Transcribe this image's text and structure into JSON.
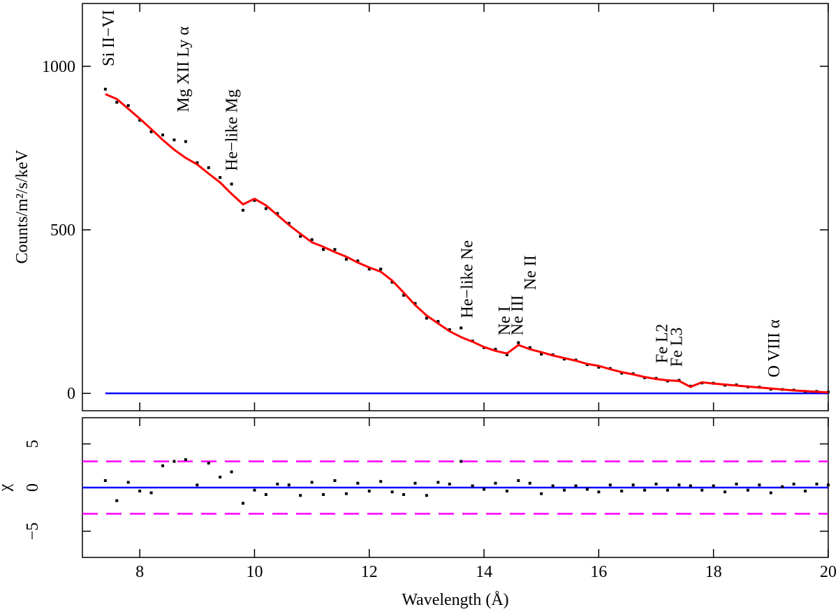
{
  "chart_data": [
    {
      "type": "spectrum",
      "ylabel": "Counts/m²/s/keV",
      "x": [
        7.4,
        7.6,
        7.8,
        8.0,
        8.2,
        8.4,
        8.6,
        8.8,
        9.0,
        9.2,
        9.4,
        9.6,
        9.8,
        10.0,
        10.2,
        10.4,
        10.6,
        10.8,
        11.0,
        11.2,
        11.4,
        11.6,
        11.8,
        12.0,
        12.2,
        12.4,
        12.6,
        12.8,
        13.0,
        13.2,
        13.4,
        13.6,
        13.8,
        14.0,
        14.2,
        14.4,
        14.6,
        14.8,
        15.0,
        15.2,
        15.4,
        15.6,
        15.8,
        16.0,
        16.2,
        16.4,
        16.6,
        16.8,
        17.0,
        17.2,
        17.4,
        17.6,
        17.8,
        18.0,
        18.2,
        18.4,
        18.6,
        18.8,
        19.0,
        19.2,
        19.4,
        19.6,
        19.8,
        20.0
      ],
      "series": [
        {
          "color": "#000000",
          "style": "points",
          "values": [
            930,
            890,
            880,
            835,
            800,
            790,
            775,
            770,
            705,
            690,
            660,
            640,
            560,
            590,
            565,
            550,
            520,
            480,
            470,
            440,
            440,
            410,
            405,
            380,
            380,
            340,
            300,
            275,
            230,
            220,
            195,
            200,
            160,
            140,
            135,
            118,
            155,
            140,
            120,
            118,
            105,
            102,
            88,
            80,
            76,
            62,
            60,
            48,
            46,
            38,
            40,
            22,
            32,
            31,
            25,
            26,
            20,
            19,
            13,
            12,
            10,
            6,
            6,
            4
          ]
        },
        {
          "color": "#ff0000",
          "style": "line",
          "values": [
            915,
            900,
            870,
            840,
            808,
            775,
            745,
            720,
            700,
            672,
            645,
            610,
            578,
            595,
            575,
            545,
            515,
            488,
            462,
            448,
            432,
            418,
            400,
            385,
            372,
            345,
            308,
            270,
            238,
            214,
            190,
            172,
            158,
            142,
            130,
            122,
            148,
            135,
            126,
            116,
            108,
            100,
            90,
            84,
            74,
            65,
            58,
            50,
            44,
            40,
            38,
            20,
            34,
            30,
            27,
            24,
            21,
            18,
            15,
            12,
            9,
            7,
            5,
            3
          ]
        }
      ],
      "hlines": [
        {
          "value": 0,
          "color": "#0000ff"
        }
      ],
      "xlim": [
        7,
        20
      ],
      "ylim": [
        -53,
        1192
      ],
      "yticks": [
        0,
        500,
        1000
      ],
      "annotations": [
        {
          "text": "Si II−VI",
          "x": 7.45,
          "y": 1000
        },
        {
          "text": "Mg XII Ly α",
          "x": 8.75,
          "y": 860
        },
        {
          "text": "He−like Mg",
          "x": 9.6,
          "y": 680
        },
        {
          "text": "He−like Ne",
          "x": 13.7,
          "y": 230
        },
        {
          "text": "Ne I",
          "x": 14.35,
          "y": 177
        },
        {
          "text": "Ne III",
          "x": 14.58,
          "y": 177
        },
        {
          "text": "Ne II",
          "x": 14.8,
          "y": 316
        },
        {
          "text": "Fe L2",
          "x": 17.1,
          "y": 92
        },
        {
          "text": "Fe L3",
          "x": 17.35,
          "y": 81
        },
        {
          "text": "O VIII α",
          "x": 19.05,
          "y": 49
        }
      ]
    },
    {
      "type": "residual",
      "xlabel": "Wavelength (Å)",
      "ylabel": "χ",
      "x": [
        7.4,
        7.6,
        7.8,
        8.0,
        8.2,
        8.4,
        8.6,
        8.8,
        9.0,
        9.2,
        9.4,
        9.6,
        9.8,
        10.0,
        10.2,
        10.4,
        10.6,
        10.8,
        11.0,
        11.2,
        11.4,
        11.6,
        11.8,
        12.0,
        12.2,
        12.4,
        12.6,
        12.8,
        13.0,
        13.2,
        13.4,
        13.6,
        13.8,
        14.0,
        14.2,
        14.4,
        14.6,
        14.8,
        15.0,
        15.2,
        15.4,
        15.6,
        15.8,
        16.0,
        16.2,
        16.4,
        16.6,
        16.8,
        17.0,
        17.2,
        17.4,
        17.6,
        17.8,
        18.0,
        18.2,
        18.4,
        18.6,
        18.8,
        19.0,
        19.2,
        19.4,
        19.6,
        19.8,
        20.0
      ],
      "series": [
        {
          "color": "#000000",
          "style": "points",
          "values": [
            0.8,
            -1.5,
            0.6,
            -0.4,
            -0.6,
            2.5,
            3.0,
            3.2,
            0.3,
            2.8,
            1.2,
            1.8,
            -1.8,
            -0.3,
            -0.8,
            0.4,
            0.3,
            -0.9,
            0.6,
            -0.8,
            0.8,
            -0.7,
            0.5,
            -0.4,
            0.7,
            -0.5,
            -0.8,
            0.5,
            -0.9,
            0.6,
            0.4,
            3.0,
            0.2,
            -0.2,
            0.5,
            -0.4,
            0.8,
            0.5,
            -0.7,
            0.2,
            -0.3,
            0.2,
            -0.2,
            -0.5,
            0.3,
            -0.4,
            0.3,
            -0.3,
            0.4,
            -0.3,
            0.3,
            0.2,
            -0.3,
            0.2,
            -0.5,
            0.4,
            -0.3,
            0.3,
            -0.6,
            0.1,
            0.4,
            -0.4,
            0.4,
            0.3
          ]
        }
      ],
      "hlines": [
        {
          "value": 0,
          "color": "#0000ff"
        },
        {
          "value": 3,
          "color": "#ff00ff",
          "dashed": true
        },
        {
          "value": -3,
          "color": "#ff00ff",
          "dashed": true
        }
      ],
      "xlim": [
        7,
        20
      ],
      "xticks": [
        8,
        10,
        12,
        14,
        16,
        18,
        20
      ],
      "ylim": [
        -8,
        8
      ],
      "yticks": [
        {
          "value": -5,
          "label": "−5"
        },
        0,
        5
      ]
    }
  ]
}
